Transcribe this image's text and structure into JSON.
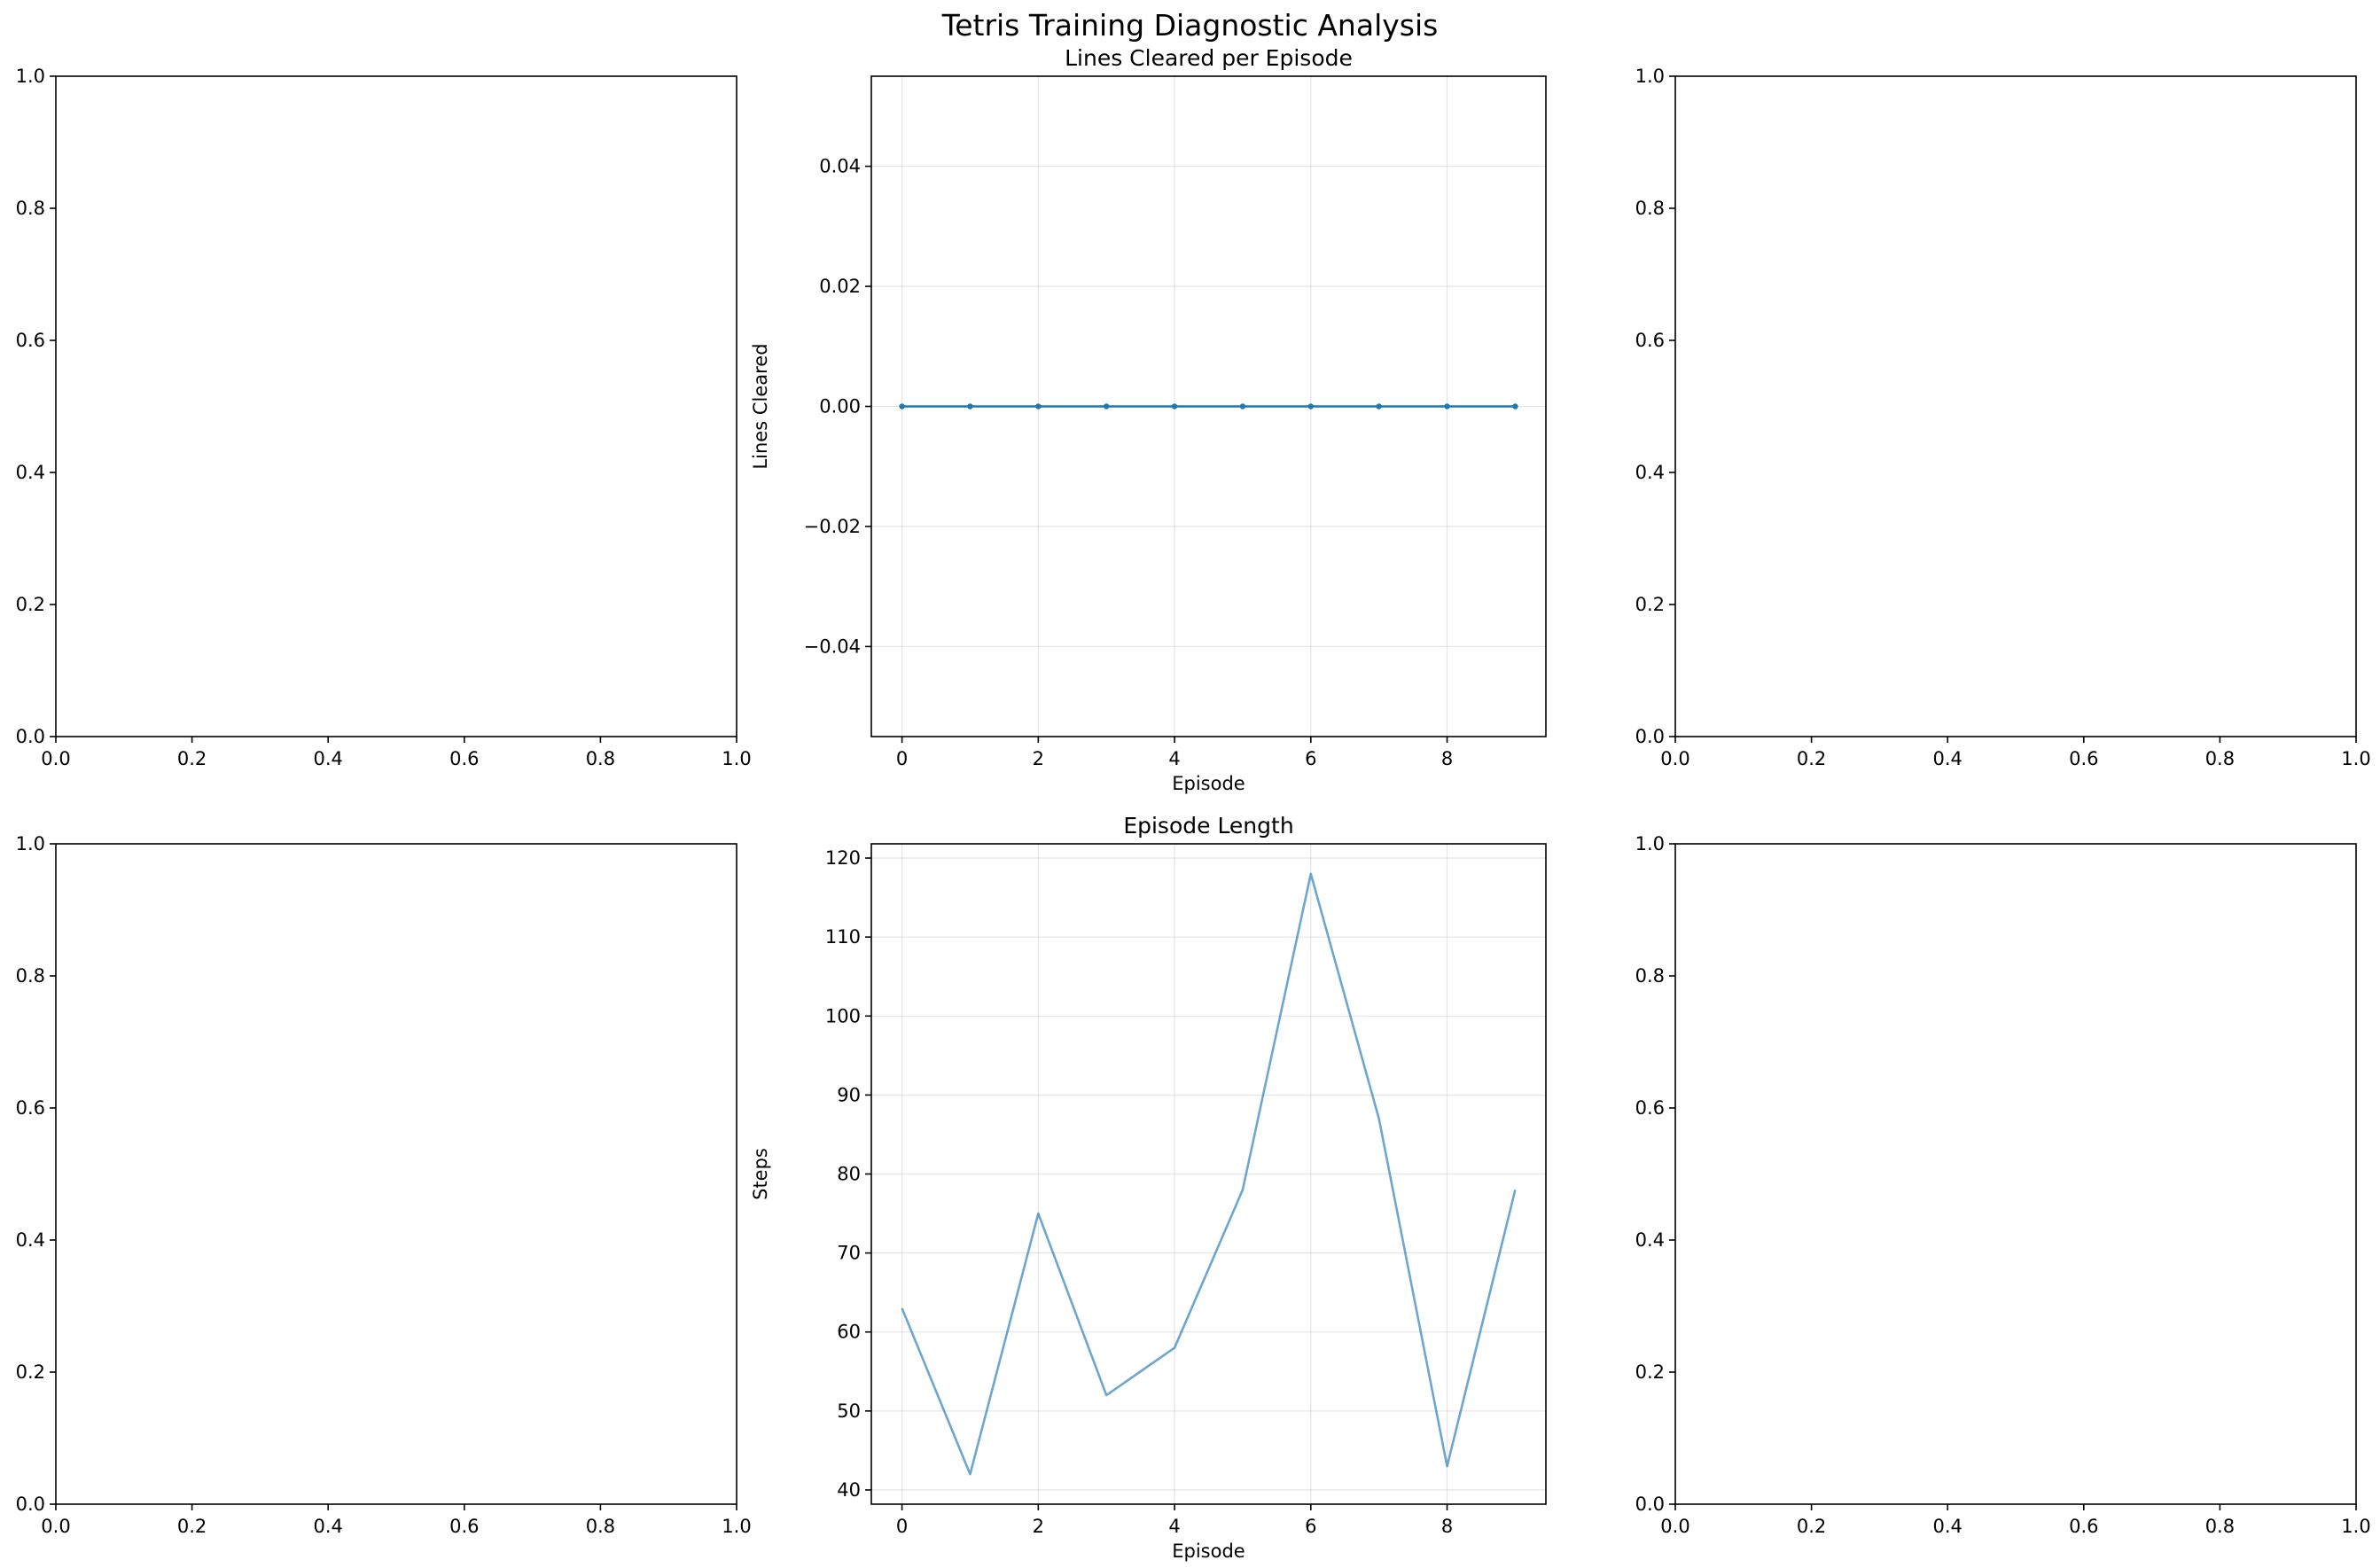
{
  "figure": {
    "suptitle": "Tetris Training Diagnostic Analysis"
  },
  "chart_data": [
    {
      "type": "empty",
      "position": "top-left",
      "xlim": [
        0,
        1
      ],
      "ylim": [
        0,
        1
      ],
      "xticks": [
        "0.0",
        "0.2",
        "0.4",
        "0.6",
        "0.8",
        "1.0"
      ],
      "yticks": [
        "0.0",
        "0.2",
        "0.4",
        "0.6",
        "0.8",
        "1.0"
      ],
      "grid": false
    },
    {
      "type": "line",
      "position": "top-center",
      "title": "Lines Cleared per Episode",
      "xlabel": "Episode",
      "ylabel": "Lines Cleared",
      "x": [
        0,
        1,
        2,
        3,
        4,
        5,
        6,
        7,
        8,
        9
      ],
      "series": [
        {
          "values": [
            0,
            0,
            0,
            0,
            0,
            0,
            0,
            0,
            0,
            0
          ],
          "color": "#1f77b4",
          "markers": true
        }
      ],
      "xlim": [
        -0.45,
        9.45
      ],
      "ylim": [
        -0.055,
        0.055
      ],
      "xticks": [
        0,
        2,
        4,
        6,
        8
      ],
      "yticks": [
        -0.04,
        -0.02,
        0.0,
        0.02,
        0.04
      ],
      "ytick_labels": [
        "−0.04",
        "−0.02",
        "0.00",
        "0.02",
        "0.04"
      ],
      "grid": true
    },
    {
      "type": "empty",
      "position": "top-right",
      "xlim": [
        0,
        1
      ],
      "ylim": [
        0,
        1
      ],
      "xticks": [
        "0.0",
        "0.2",
        "0.4",
        "0.6",
        "0.8",
        "1.0"
      ],
      "yticks": [
        "0.0",
        "0.2",
        "0.4",
        "0.6",
        "0.8",
        "1.0"
      ],
      "grid": false
    },
    {
      "type": "empty",
      "position": "bottom-left",
      "xlim": [
        0,
        1
      ],
      "ylim": [
        0,
        1
      ],
      "xticks": [
        "0.0",
        "0.2",
        "0.4",
        "0.6",
        "0.8",
        "1.0"
      ],
      "yticks": [
        "0.0",
        "0.2",
        "0.4",
        "0.6",
        "0.8",
        "1.0"
      ],
      "grid": false
    },
    {
      "type": "line",
      "position": "bottom-center",
      "title": "Episode Length",
      "xlabel": "Episode",
      "ylabel": "Steps",
      "x": [
        0,
        1,
        2,
        3,
        4,
        5,
        6,
        7,
        8,
        9
      ],
      "series": [
        {
          "values": [
            63,
            42,
            75,
            52,
            58,
            78,
            118,
            87,
            43,
            78
          ],
          "color": "#1f77b4",
          "markers": false,
          "alpha": 0.65
        }
      ],
      "xlim": [
        -0.45,
        9.45
      ],
      "ylim": [
        38.2,
        121.8
      ],
      "xticks": [
        0,
        2,
        4,
        6,
        8
      ],
      "yticks": [
        40,
        50,
        60,
        70,
        80,
        90,
        100,
        110,
        120
      ],
      "grid": true
    },
    {
      "type": "empty",
      "position": "bottom-right",
      "xlim": [
        0,
        1
      ],
      "ylim": [
        0,
        1
      ],
      "xticks": [
        "0.0",
        "0.2",
        "0.4",
        "0.6",
        "0.8",
        "1.0"
      ],
      "yticks": [
        "0.0",
        "0.2",
        "0.4",
        "0.6",
        "0.8",
        "1.0"
      ],
      "grid": false
    }
  ]
}
